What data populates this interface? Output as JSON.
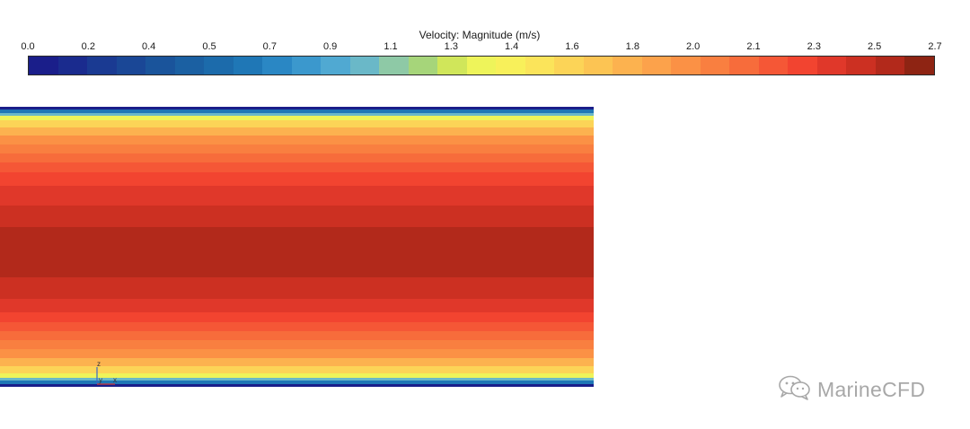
{
  "colorbar": {
    "title": "Velocity: Magnitude (m/s)",
    "tick_labels": [
      "0.0",
      "0.2",
      "0.4",
      "0.5",
      "0.7",
      "0.9",
      "1.1",
      "1.3",
      "1.4",
      "1.6",
      "1.8",
      "2.0",
      "2.1",
      "2.3",
      "2.5",
      "2.7"
    ],
    "range": [
      0.0,
      2.7
    ],
    "colors": [
      "#1a1e8a",
      "#1a2b8e",
      "#1a3a92",
      "#1a4796",
      "#1a549b",
      "#1b60a2",
      "#1c6bab",
      "#1f77b6",
      "#2a87c4",
      "#3b98cd",
      "#50a9d2",
      "#6ab8c8",
      "#8ec9a6",
      "#a6d57a",
      "#d0e65a",
      "#eef45a",
      "#f8f05a",
      "#fbe45a",
      "#fcd457",
      "#fcc453",
      "#fcb24f",
      "#fca24b",
      "#fb9145",
      "#f97f40",
      "#f76c3b",
      "#f55736",
      "#f24430",
      "#e0382a",
      "#cc3022",
      "#b2291b",
      "#8e2413"
    ]
  },
  "field": {
    "bands": [
      {
        "color": "#1a1e8a",
        "value": 0.0
      },
      {
        "color": "#1f77b6",
        "value": 0.6
      },
      {
        "color": "#6ab8c8",
        "value": 1.0
      },
      {
        "color": "#eef45a",
        "value": 1.35
      },
      {
        "color": "#fcd457",
        "value": 1.6
      },
      {
        "color": "#fcb24f",
        "value": 1.8
      },
      {
        "color": "#fb9145",
        "value": 1.95
      },
      {
        "color": "#f97f40",
        "value": 2.05
      },
      {
        "color": "#f76c3b",
        "value": 2.15
      },
      {
        "color": "#f55736",
        "value": 2.25
      },
      {
        "color": "#f24430",
        "value": 2.35
      },
      {
        "color": "#e0382a",
        "value": 2.45
      },
      {
        "color": "#cc3022",
        "value": 2.55
      },
      {
        "color": "#b2291b",
        "value": 2.65
      },
      {
        "color": "#cc3022",
        "value": 2.55
      },
      {
        "color": "#e0382a",
        "value": 2.45
      },
      {
        "color": "#f24430",
        "value": 2.35
      },
      {
        "color": "#f55736",
        "value": 2.25
      },
      {
        "color": "#f76c3b",
        "value": 2.15
      },
      {
        "color": "#f97f40",
        "value": 2.05
      },
      {
        "color": "#fb9145",
        "value": 1.95
      },
      {
        "color": "#fcb24f",
        "value": 1.8
      },
      {
        "color": "#fcd457",
        "value": 1.6
      },
      {
        "color": "#eef45a",
        "value": 1.35
      },
      {
        "color": "#6ab8c8",
        "value": 1.0
      },
      {
        "color": "#1f77b6",
        "value": 0.6
      },
      {
        "color": "#1a1e8a",
        "value": 0.0
      }
    ]
  },
  "axes_triad": {
    "z_label": "z",
    "y_label": "y",
    "x_label": "x"
  },
  "watermark": {
    "text": "MarineCFD",
    "icon": "wechat-icon"
  }
}
